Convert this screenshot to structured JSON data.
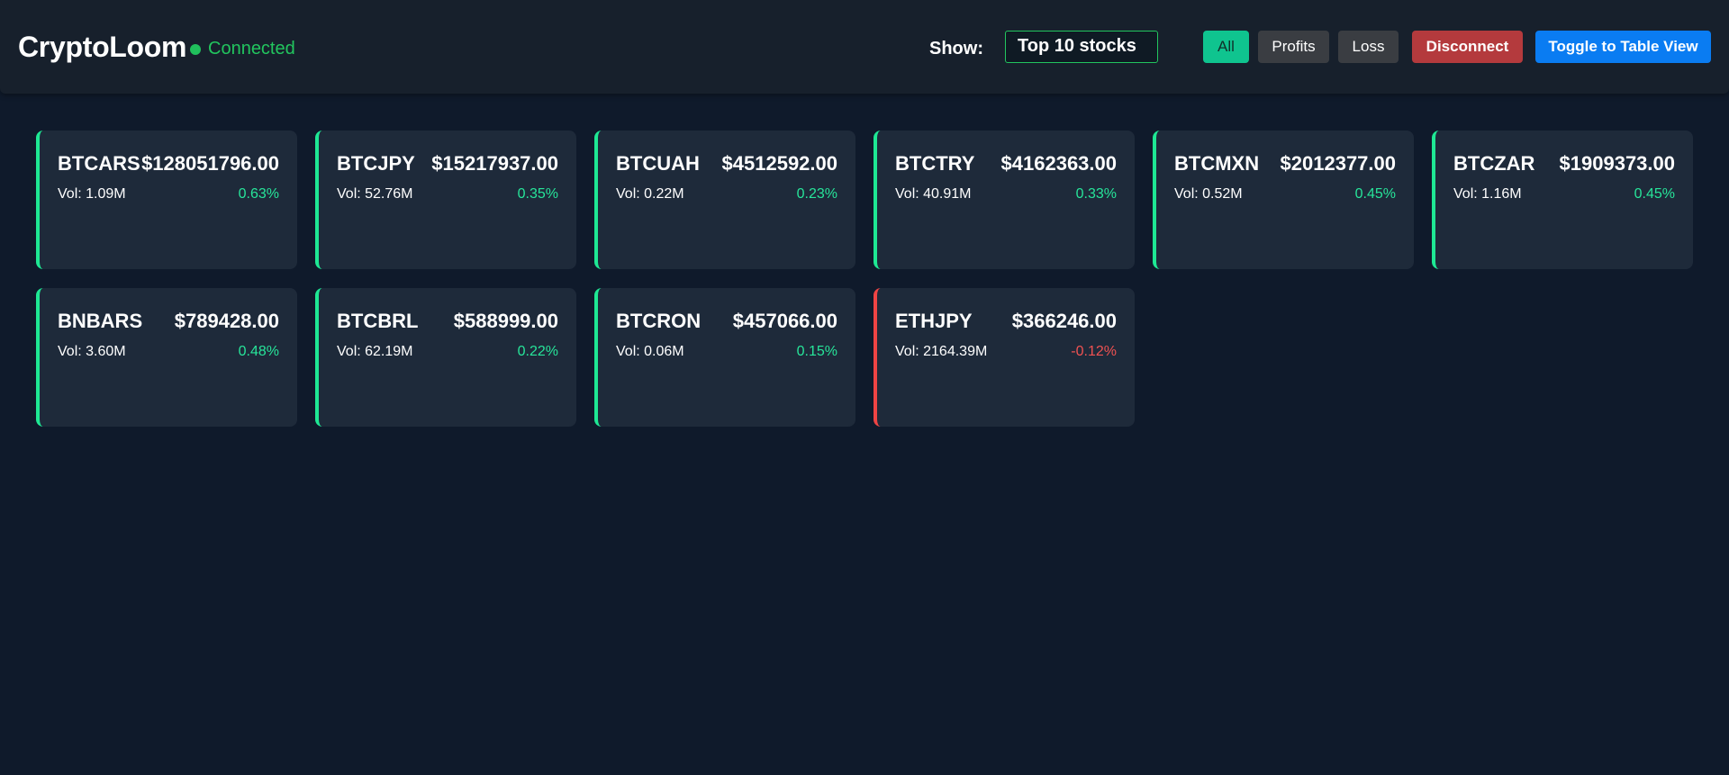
{
  "header": {
    "brand": "CryptoLoom",
    "status": "Connected",
    "show_label": "Show:",
    "show_select": "Top 10 stocks",
    "buttons": {
      "all": "All",
      "profits": "Profits",
      "loss": "Loss",
      "disconnect": "Disconnect",
      "toggle": "Toggle to Table View"
    }
  },
  "colors": {
    "background": "#0f1a2b",
    "card": "#1e2a3a",
    "positive": "#27e59a",
    "negative": "#f05252",
    "connected": "#22c55e"
  },
  "cards": [
    {
      "symbol": "BTCARS",
      "price": "$128051796.00",
      "volume": "Vol: 1.09M",
      "change": "0.63%",
      "trend": "up"
    },
    {
      "symbol": "BTCJPY",
      "price": "$15217937.00",
      "volume": "Vol: 52.76M",
      "change": "0.35%",
      "trend": "up"
    },
    {
      "symbol": "BTCUAH",
      "price": "$4512592.00",
      "volume": "Vol: 0.22M",
      "change": "0.23%",
      "trend": "up"
    },
    {
      "symbol": "BTCTRY",
      "price": "$4162363.00",
      "volume": "Vol: 40.91M",
      "change": "0.33%",
      "trend": "up"
    },
    {
      "symbol": "BTCMXN",
      "price": "$2012377.00",
      "volume": "Vol: 0.52M",
      "change": "0.45%",
      "trend": "up"
    },
    {
      "symbol": "BTCZAR",
      "price": "$1909373.00",
      "volume": "Vol: 1.16M",
      "change": "0.45%",
      "trend": "up"
    },
    {
      "symbol": "BNBARS",
      "price": "$789428.00",
      "volume": "Vol: 3.60M",
      "change": "0.48%",
      "trend": "up"
    },
    {
      "symbol": "BTCBRL",
      "price": "$588999.00",
      "volume": "Vol: 62.19M",
      "change": "0.22%",
      "trend": "up"
    },
    {
      "symbol": "BTCRON",
      "price": "$457066.00",
      "volume": "Vol: 0.06M",
      "change": "0.15%",
      "trend": "up"
    },
    {
      "symbol": "ETHJPY",
      "price": "$366246.00",
      "volume": "Vol: 2164.39M",
      "change": "-0.12%",
      "trend": "down"
    }
  ]
}
